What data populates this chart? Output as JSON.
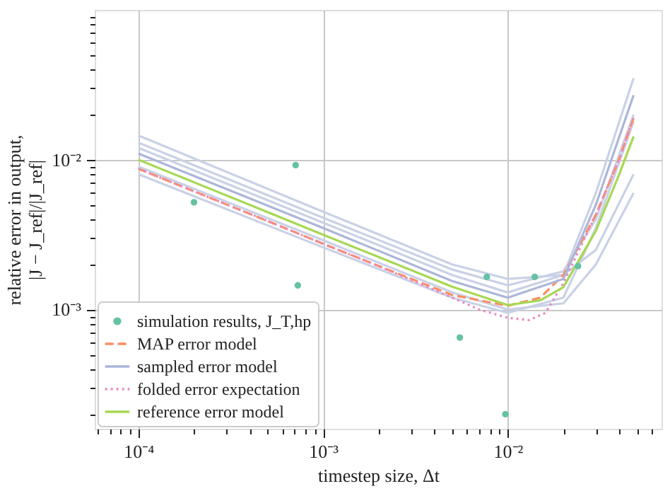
{
  "chart_data": {
    "type": "line",
    "xlabel": "timestep size, Δt",
    "ylabel": "relative error in output,\n|J − J_ref|/|J_ref|",
    "log": "xy",
    "grid": true,
    "legend": "bottom left",
    "marker": "none",
    "xlim": [
      5.8e-05,
      0.068
    ],
    "ylim": [
      0.00016,
      0.1
    ],
    "xticks": [
      {
        "value": 6e-05,
        "label": null
      },
      {
        "value": 7e-05,
        "label": null
      },
      {
        "value": 8e-05,
        "label": null
      },
      {
        "value": 9e-05,
        "label": null
      },
      {
        "value": 0.0001,
        "label": "10⁻⁴"
      },
      {
        "value": 0.0002,
        "label": null
      },
      {
        "value": 0.0003,
        "label": null
      },
      {
        "value": 0.0004,
        "label": null
      },
      {
        "value": 0.0005,
        "label": null
      },
      {
        "value": 0.0006,
        "label": null
      },
      {
        "value": 0.0007,
        "label": null
      },
      {
        "value": 0.0008,
        "label": null
      },
      {
        "value": 0.0009,
        "label": null
      },
      {
        "value": 0.001,
        "label": "10⁻³"
      },
      {
        "value": 0.002,
        "label": null
      },
      {
        "value": 0.003,
        "label": null
      },
      {
        "value": 0.004,
        "label": null
      },
      {
        "value": 0.005,
        "label": null
      },
      {
        "value": 0.006,
        "label": null
      },
      {
        "value": 0.007,
        "label": null
      },
      {
        "value": 0.008,
        "label": null
      },
      {
        "value": 0.009,
        "label": null
      },
      {
        "value": 0.01,
        "label": "10⁻²"
      },
      {
        "value": 0.02,
        "label": null
      },
      {
        "value": 0.03,
        "label": null
      },
      {
        "value": 0.04,
        "label": null
      },
      {
        "value": 0.05,
        "label": null
      },
      {
        "value": 0.06,
        "label": null
      }
    ],
    "yticks": [
      {
        "value": 0.0002,
        "label": null
      },
      {
        "value": 0.0003,
        "label": null
      },
      {
        "value": 0.0004,
        "label": null
      },
      {
        "value": 0.0005,
        "label": null
      },
      {
        "value": 0.0006,
        "label": null
      },
      {
        "value": 0.0007,
        "label": null
      },
      {
        "value": 0.0008,
        "label": null
      },
      {
        "value": 0.0009,
        "label": null
      },
      {
        "value": 0.001,
        "label": "10⁻³"
      },
      {
        "value": 0.002,
        "label": null
      },
      {
        "value": 0.003,
        "label": null
      },
      {
        "value": 0.004,
        "label": null
      },
      {
        "value": 0.005,
        "label": null
      },
      {
        "value": 0.006,
        "label": null
      },
      {
        "value": 0.007,
        "label": null
      },
      {
        "value": 0.008,
        "label": null
      },
      {
        "value": 0.009,
        "label": null
      },
      {
        "value": 0.01,
        "label": "10⁻²"
      },
      {
        "value": 0.02,
        "label": null
      },
      {
        "value": 0.03,
        "label": null
      },
      {
        "value": 0.04,
        "label": null
      },
      {
        "value": 0.05,
        "label": null
      },
      {
        "value": 0.06,
        "label": null
      },
      {
        "value": 0.07,
        "label": null
      },
      {
        "value": 0.08,
        "label": null
      },
      {
        "value": 0.09,
        "label": null
      }
    ],
    "series": [
      {
        "type": "scatter",
        "name": "simulation results, J_T,hp",
        "color": "#66c2a5",
        "marker": "circle",
        "x": [
          0.0002,
          0.00071,
          0.00073,
          0.0055,
          0.0077,
          0.0097,
          0.014,
          0.024
        ],
        "values": [
          0.0052,
          0.0092,
          0.00145,
          0.00065,
          0.00165,
          0.0002,
          0.00165,
          0.00195
        ]
      },
      {
        "type": "line",
        "name": "MAP error model",
        "color": "#fc8d62",
        "line_style": "dashed",
        "x": [
          0.0001,
          0.0002,
          0.0005,
          0.001,
          0.002,
          0.005,
          0.01,
          0.015,
          0.02,
          0.03,
          0.04,
          0.048
        ],
        "values": [
          0.0087,
          0.00615,
          0.0039,
          0.00275,
          0.00195,
          0.00125,
          0.00106,
          0.0012,
          0.0017,
          0.0043,
          0.01,
          0.019
        ]
      },
      {
        "type": "line",
        "name": "sampled error model",
        "color": "#aab6d8",
        "line_style": "solid",
        "x": [
          0.0001,
          0.001,
          0.005,
          0.01,
          0.02,
          0.03,
          0.048
        ],
        "values": [
          0.011,
          0.0035,
          0.00155,
          0.0012,
          0.0016,
          0.005,
          0.027
        ]
      },
      {
        "type": "line",
        "name": "folded error expectation",
        "color": "#e78ac3",
        "line_style": "dotted",
        "x": [
          0.0001,
          0.0002,
          0.0005,
          0.001,
          0.002,
          0.005,
          0.007,
          0.01,
          0.013,
          0.016,
          0.02,
          0.03,
          0.04,
          0.048
        ],
        "values": [
          0.0087,
          0.00615,
          0.0039,
          0.00275,
          0.00195,
          0.0012,
          0.001,
          0.00088,
          0.00085,
          0.00095,
          0.0015,
          0.0043,
          0.01,
          0.019
        ]
      },
      {
        "type": "line",
        "name": "reference error model",
        "color": "#a6d854",
        "line_style": "solid",
        "x": [
          0.0001,
          0.0002,
          0.0005,
          0.001,
          0.002,
          0.005,
          0.01,
          0.015,
          0.02,
          0.03,
          0.04,
          0.048
        ],
        "values": [
          0.01,
          0.00707,
          0.00447,
          0.00316,
          0.00224,
          0.00142,
          0.00107,
          0.00115,
          0.00141,
          0.00335,
          0.0079,
          0.0143
        ]
      },
      {
        "type": "line",
        "line_style": "solid",
        "color": "#c9d1e6",
        "x": [
          0.0001,
          0.001,
          0.005,
          0.01,
          0.02,
          0.03,
          0.048
        ],
        "values": [
          0.012,
          0.0038,
          0.0017,
          0.0013,
          0.0017,
          0.006,
          0.035
        ]
      },
      {
        "type": "line",
        "line_style": "solid",
        "color": "#c9d1e6",
        "x": [
          0.0001,
          0.001,
          0.005,
          0.01,
          0.02,
          0.03,
          0.048
        ],
        "values": [
          0.013,
          0.0041,
          0.00185,
          0.00145,
          0.0018,
          0.004,
          0.02
        ]
      },
      {
        "type": "line",
        "line_style": "solid",
        "color": "#c9d1e6",
        "x": [
          0.0001,
          0.001,
          0.005,
          0.01,
          0.02,
          0.03,
          0.048
        ],
        "values": [
          0.009,
          0.0029,
          0.0013,
          0.001,
          0.0011,
          0.002,
          0.006
        ]
      },
      {
        "type": "line",
        "line_style": "solid",
        "color": "#c9d1e6",
        "x": [
          0.0001,
          0.001,
          0.005,
          0.01,
          0.02,
          0.03,
          0.048
        ],
        "values": [
          0.0145,
          0.0045,
          0.002,
          0.0016,
          0.0017,
          0.0025,
          0.008
        ]
      },
      {
        "type": "line",
        "line_style": "solid",
        "color": "#c9d1e6",
        "x": [
          0.0001,
          0.001,
          0.005,
          0.01,
          0.02,
          0.03,
          0.048
        ],
        "values": [
          0.008,
          0.0026,
          0.0012,
          0.00095,
          0.0012,
          0.0035,
          0.018
        ]
      }
    ]
  }
}
